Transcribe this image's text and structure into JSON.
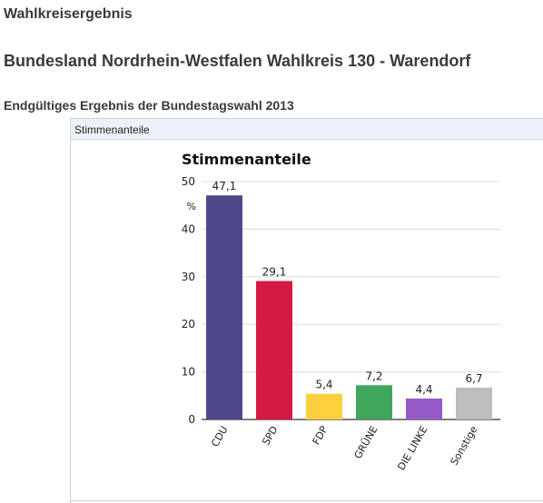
{
  "header": {
    "page_title": "Wahlkreisergebnis",
    "district_title": "Bundesland Nordrhein-Westfalen Wahlkreis 130 - Warendorf",
    "election_title": "Endgültiges Ergebnis der Bundestagswahl 2013"
  },
  "panel": {
    "title": "Stimmenanteile"
  },
  "chart_data": {
    "type": "bar",
    "title": "Stimmenanteile",
    "xlabel": "",
    "ylabel": "%",
    "ylim": [
      0,
      50
    ],
    "yticks": [
      0,
      10,
      20,
      30,
      40,
      50
    ],
    "ytick_labels": [
      "0",
      "10",
      "20",
      "30",
      "40",
      "50"
    ],
    "grid": true,
    "categories": [
      "CDU",
      "SPD",
      "FDP",
      "GRÜNE",
      "DIE LINKE",
      "Sonstige"
    ],
    "values": [
      47.1,
      29.1,
      5.4,
      7.2,
      4.4,
      6.7
    ],
    "value_labels": [
      "47,1",
      "29,1",
      "5,4",
      "7,2",
      "4,4",
      "6,7"
    ],
    "colors": [
      "#4e4a8a",
      "#d41a42",
      "#fccf3e",
      "#40a65c",
      "#9659c8",
      "#bdbdbd"
    ]
  }
}
